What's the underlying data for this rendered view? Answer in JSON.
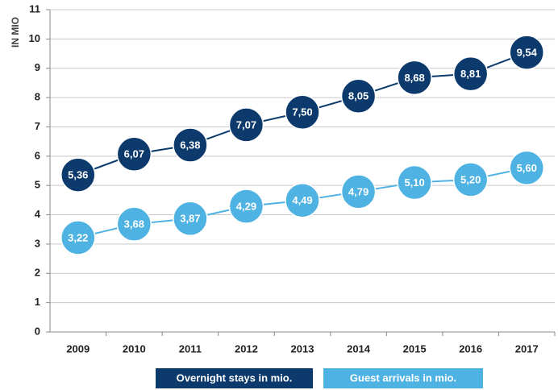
{
  "chart_data": {
    "type": "line",
    "y_label": "IN MIO",
    "categories": [
      "2009",
      "2010",
      "2011",
      "2012",
      "2013",
      "2014",
      "2015",
      "2016",
      "2017"
    ],
    "series": [
      {
        "name": "Overnight stays in mio.",
        "color": "#0c3a6c",
        "values": [
          5.36,
          6.07,
          6.38,
          7.07,
          7.5,
          8.05,
          8.68,
          8.81,
          9.54
        ],
        "value_labels": [
          "5,36",
          "6,07",
          "6,38",
          "7,07",
          "7,50",
          "8,05",
          "8,68",
          "8,81",
          "9,54"
        ]
      },
      {
        "name": "Guest arrivals in mio.",
        "color": "#4eb2e3",
        "values": [
          3.22,
          3.68,
          3.87,
          4.29,
          4.49,
          4.79,
          5.1,
          5.2,
          5.6
        ],
        "value_labels": [
          "3,22",
          "3,68",
          "3,87",
          "4,29",
          "4,49",
          "4,79",
          "5,10",
          "5,20",
          "5,60"
        ]
      }
    ],
    "ylim": [
      0,
      11
    ],
    "yticks": [
      0,
      1,
      2,
      3,
      4,
      5,
      6,
      7,
      8,
      9,
      10,
      11
    ],
    "grid": true,
    "legend": "bottom"
  }
}
